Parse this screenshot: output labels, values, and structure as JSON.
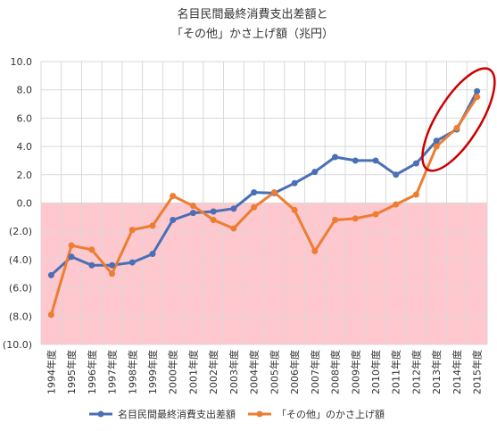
{
  "chart_data": {
    "type": "line",
    "title_lines": [
      "名目民間最終消費支出差額と",
      "「その他」かさ上げ額（兆円）"
    ],
    "categories": [
      "1994年度",
      "1995年度",
      "1996年度",
      "1997年度",
      "1998年度",
      "1999年度",
      "2000年度",
      "2001年度",
      "2002年度",
      "2003年度",
      "2004年度",
      "2005年度",
      "2006年度",
      "2007年度",
      "2008年度",
      "2009年度",
      "2010年度",
      "2011年度",
      "2012年度",
      "2013年度",
      "2014年度",
      "2015年度"
    ],
    "ylim": [
      -10,
      10
    ],
    "yticks": [
      10,
      8,
      6,
      4,
      2,
      0,
      -2,
      -4,
      -6,
      -8,
      -10
    ],
    "ytick_labels": [
      "10.0",
      "8.0",
      "6.0",
      "4.0",
      "2.0",
      "0.0",
      "(2.0)",
      "(4.0)",
      "(6.0)",
      "(8.0)",
      "(10.0)"
    ],
    "grid": true,
    "negative_region_color": "#ffc7ce",
    "series": [
      {
        "name": "名目民間最終消費支出差額",
        "color": "#4a6fb5",
        "values": [
          -5.1,
          -3.8,
          -4.4,
          -4.4,
          -4.2,
          -3.6,
          -1.2,
          -0.7,
          -0.6,
          -0.4,
          0.75,
          0.7,
          1.4,
          2.2,
          3.25,
          3.0,
          3.0,
          2.0,
          2.8,
          4.4,
          5.2,
          7.9
        ]
      },
      {
        "name": "「その他」のかさ上げ額",
        "color": "#ed7d31",
        "values": [
          -7.9,
          -3.0,
          -3.3,
          -5.0,
          -1.9,
          -1.6,
          0.5,
          -0.2,
          -1.2,
          -1.8,
          -0.3,
          0.75,
          -0.5,
          -3.4,
          -1.2,
          -1.1,
          -0.8,
          -0.1,
          0.6,
          4.0,
          5.3,
          7.5
        ]
      }
    ],
    "annotation": {
      "type": "ellipse",
      "color": "#cc0000",
      "around_categories": [
        "2013年度",
        "2014年度",
        "2015年度"
      ]
    },
    "legend_placement": "bottom"
  }
}
